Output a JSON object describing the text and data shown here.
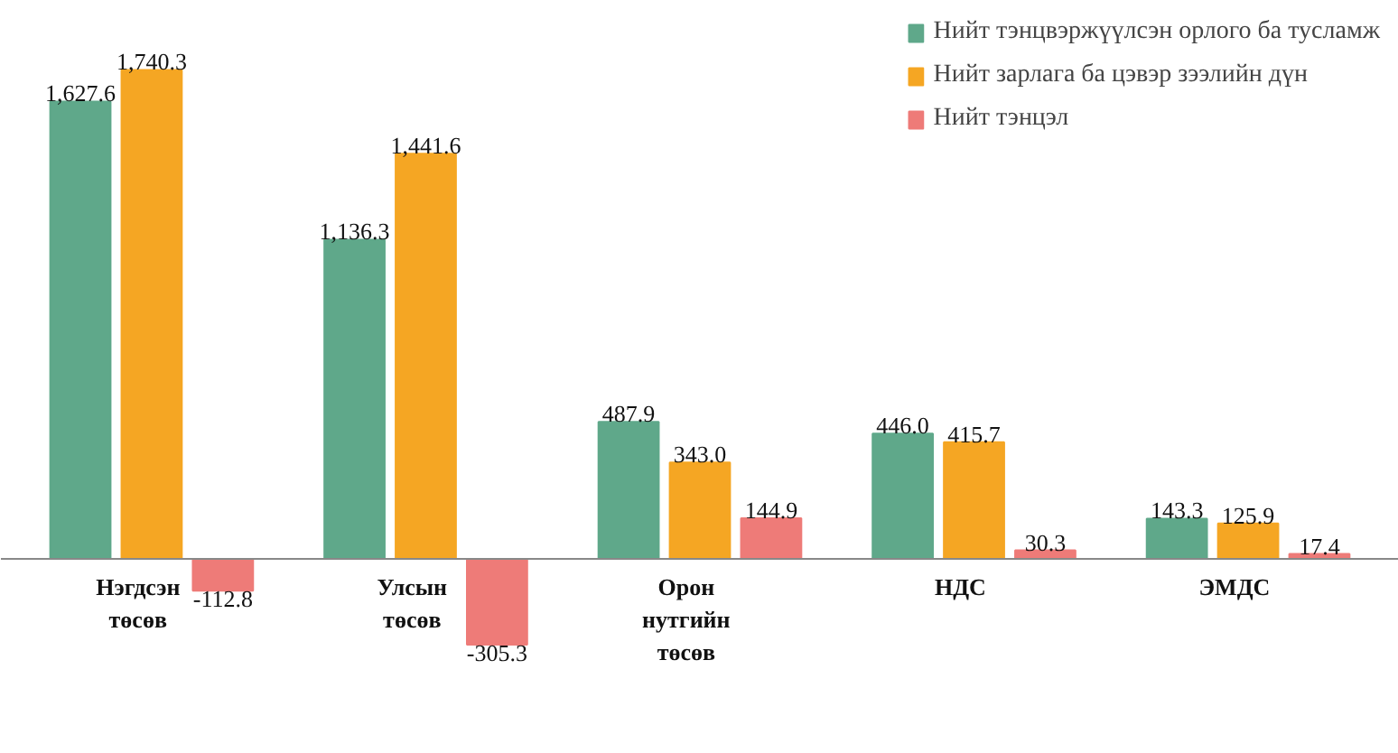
{
  "chart_data": {
    "type": "bar",
    "categories": [
      "Нэгдсэн төсөв",
      "Улсын төсөв",
      "Орон нутгийн төсөв",
      "НДС",
      "ЭМДС"
    ],
    "series": [
      {
        "name": "Нийт тэнцвэржүүлсэн орлого ба тусламж",
        "color": "#5fa88a",
        "values": [
          1627.6,
          1136.3,
          487.9,
          446.0,
          143.3
        ],
        "value_labels": [
          "1,627.6",
          "1,136.3",
          "487.9",
          "446.0",
          "143.3"
        ]
      },
      {
        "name": "Нийт зарлага ба цэвэр зээлийн дүн",
        "color": "#f5a623",
        "values": [
          1740.3,
          1441.6,
          343.0,
          415.7,
          125.9
        ],
        "value_labels": [
          "1,740.3",
          "1,441.6",
          "343.0",
          "415.7",
          "125.9"
        ]
      },
      {
        "name": "Нийт тэнцэл",
        "color": "#ee7b78",
        "values": [
          -112.8,
          -305.3,
          144.9,
          30.3,
          17.4
        ],
        "value_labels": [
          "-112.8",
          "-305.3",
          "144.9",
          "30.3",
          "17.4"
        ]
      }
    ],
    "legend": "top right",
    "grid": false
  }
}
